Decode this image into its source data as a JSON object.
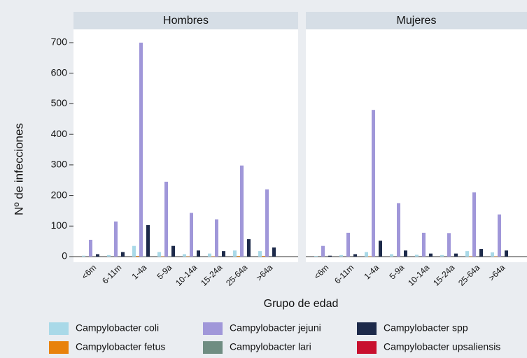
{
  "chart_data": {
    "type": "bar",
    "ylabel": "Nº de infecciones",
    "xlabel": "Grupo de edad",
    "panels": [
      "Hombres",
      "Mujeres"
    ],
    "categories": [
      "<6m",
      "6-11m",
      "1-4a",
      "5-9a",
      "10-14a",
      "15-24a",
      "25-64a",
      ">64a"
    ],
    "ylim": [
      0,
      700
    ],
    "yticks": [
      0,
      100,
      200,
      300,
      400,
      500,
      600,
      700
    ],
    "series": [
      {
        "name": "Campylobacter coli",
        "color": "#a9d9e8",
        "values": [
          [
            3,
            5,
            35,
            15,
            8,
            10,
            20,
            18
          ],
          [
            2,
            5,
            15,
            8,
            6,
            5,
            18,
            14
          ]
        ]
      },
      {
        "name": "Campylobacter fetus",
        "color": "#e8820c",
        "values": [
          [
            0,
            0,
            2,
            1,
            1,
            1,
            2,
            2
          ],
          [
            0,
            0,
            1,
            0,
            0,
            0,
            1,
            1
          ]
        ]
      },
      {
        "name": "Campylobacter jejuni",
        "color": "#a097d9",
        "values": [
          [
            55,
            115,
            700,
            245,
            143,
            122,
            298,
            220
          ],
          [
            35,
            78,
            480,
            175,
            78,
            77,
            210,
            138
          ]
        ]
      },
      {
        "name": "Campylobacter lari",
        "color": "#6f8d82",
        "values": [
          [
            0,
            0,
            1,
            1,
            0,
            0,
            1,
            0
          ],
          [
            0,
            0,
            0,
            0,
            0,
            0,
            0,
            0
          ]
        ]
      },
      {
        "name": "Campylobacter spp",
        "color": "#1d2a4a",
        "values": [
          [
            8,
            15,
            103,
            35,
            20,
            18,
            57,
            30
          ],
          [
            3,
            8,
            52,
            20,
            10,
            10,
            25,
            20
          ]
        ]
      },
      {
        "name": "Campylobacter upsaliensis",
        "color": "#c8102e",
        "values": [
          [
            0,
            0,
            0,
            0,
            0,
            0,
            0,
            0
          ],
          [
            0,
            0,
            0,
            0,
            0,
            0,
            0,
            0
          ]
        ]
      }
    ]
  }
}
